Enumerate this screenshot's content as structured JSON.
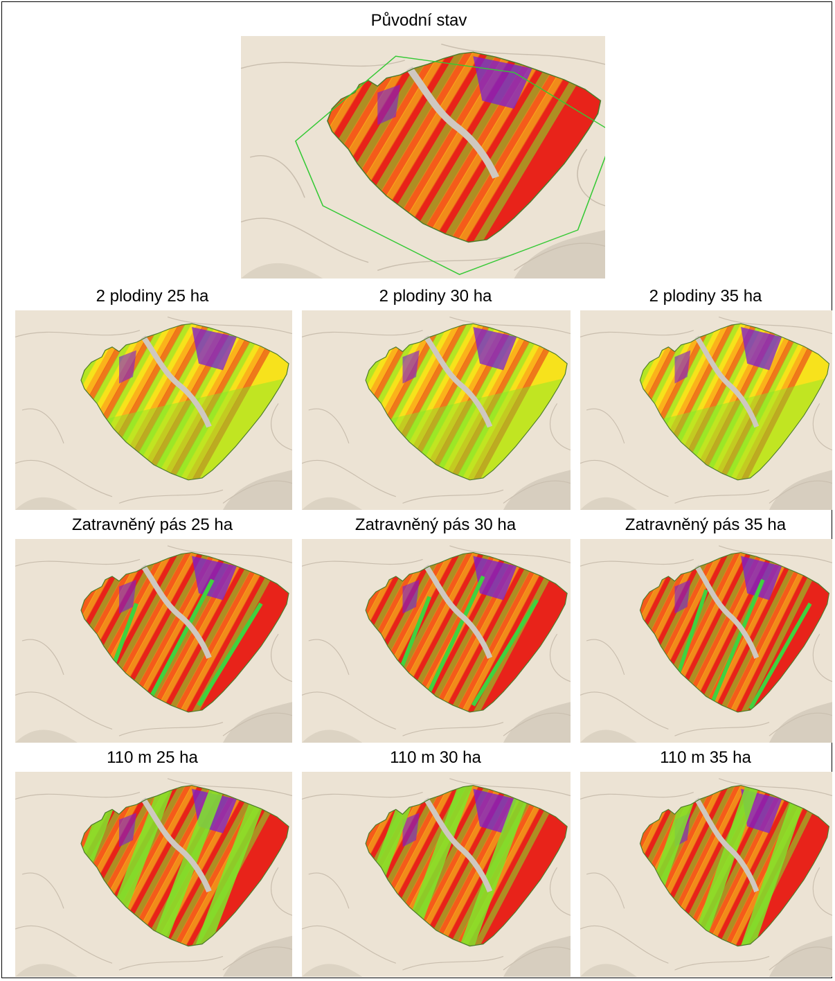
{
  "panels": [
    {
      "id": "original",
      "title": "Původní stav",
      "strip": "none",
      "variant": "original"
    },
    {
      "id": "p2_25",
      "title": "2 plodiny 25 ha",
      "strip": "crops",
      "variant": "v25"
    },
    {
      "id": "p2_30",
      "title": "2 plodiny 30 ha",
      "strip": "crops",
      "variant": "v30"
    },
    {
      "id": "p2_35",
      "title": "2 plodiny 35 ha",
      "strip": "crops",
      "variant": "v35"
    },
    {
      "id": "z_25",
      "title": "Zatravněný pás 25 ha",
      "strip": "grass",
      "variant": "v25"
    },
    {
      "id": "z_30",
      "title": "Zatravněný pás 30 ha",
      "strip": "grass",
      "variant": "v30"
    },
    {
      "id": "z_35",
      "title": "Zatravněný pás 35 ha",
      "strip": "grass",
      "variant": "v35"
    },
    {
      "id": "m_25",
      "title": "110 m 25 ha",
      "strip": "wide",
      "variant": "v25"
    },
    {
      "id": "m_30",
      "title": "110 m 30 ha",
      "strip": "wide",
      "variant": "v30"
    },
    {
      "id": "m_35",
      "title": "110 m 35 ha",
      "strip": "wide",
      "variant": "v35"
    }
  ],
  "colors": {
    "terrain": "#ece3d4",
    "high": "#e8231a",
    "mid": "#ff8a1c",
    "low": "#f7e21c",
    "vlow": "#7ee82b",
    "veryhigh": "#7a1fd1",
    "boundary": "#35c935"
  }
}
